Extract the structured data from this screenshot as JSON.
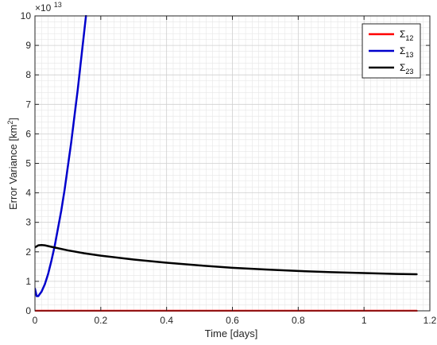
{
  "chart_data": {
    "type": "line",
    "xlabel": "Time [days]",
    "ylabel_main": "Error Variance [km",
    "ylabel_sup": "2",
    "ylabel_end": "]",
    "exponent_base": "×10",
    "exponent_power": "13",
    "xlim": [
      0,
      1.2
    ],
    "ylim": [
      0,
      10
    ],
    "y_scale_factor": 10000000000000.0,
    "x_ticks": [
      "0",
      "0.2",
      "0.4",
      "0.6",
      "0.8",
      "1",
      "1.2"
    ],
    "y_ticks": [
      "0",
      "1",
      "2",
      "3",
      "4",
      "5",
      "6",
      "7",
      "8",
      "9",
      "10"
    ],
    "grid": true,
    "minor_grid": true,
    "legend_position": "top-right",
    "colors": {
      "s12": "#ff0000",
      "s13": "#0000cc",
      "s23": "#000000"
    },
    "series": [
      {
        "key": "s12",
        "name_main": "Σ",
        "name_sub": "12",
        "color": "#ff0000",
        "x": [
          0,
          0.2,
          0.4,
          0.6,
          0.8,
          1.0,
          1.16
        ],
        "y": [
          0,
          0,
          0,
          0,
          0,
          0,
          0
        ]
      },
      {
        "key": "s13",
        "name_main": "Σ",
        "name_sub": "13",
        "color": "#0000cc",
        "x": [
          0,
          0.005,
          0.01,
          0.02,
          0.03,
          0.04,
          0.05,
          0.06,
          0.07,
          0.08,
          0.09,
          0.1,
          0.11,
          0.12,
          0.13,
          0.14,
          0.15,
          0.155
        ],
        "y": [
          0.75,
          0.5,
          0.5,
          0.65,
          0.9,
          1.25,
          1.7,
          2.2,
          2.8,
          3.4,
          4.1,
          4.9,
          5.7,
          6.6,
          7.5,
          8.5,
          9.5,
          10.0
        ]
      },
      {
        "key": "s23",
        "name_main": "Σ",
        "name_sub": "23",
        "color": "#000000",
        "x": [
          0,
          0.01,
          0.02,
          0.03,
          0.05,
          0.1,
          0.15,
          0.2,
          0.3,
          0.4,
          0.5,
          0.6,
          0.7,
          0.8,
          0.9,
          1.0,
          1.1,
          1.16
        ],
        "y": [
          2.15,
          2.22,
          2.23,
          2.22,
          2.17,
          2.05,
          1.95,
          1.87,
          1.74,
          1.63,
          1.54,
          1.46,
          1.4,
          1.35,
          1.31,
          1.28,
          1.25,
          1.24
        ]
      }
    ]
  }
}
